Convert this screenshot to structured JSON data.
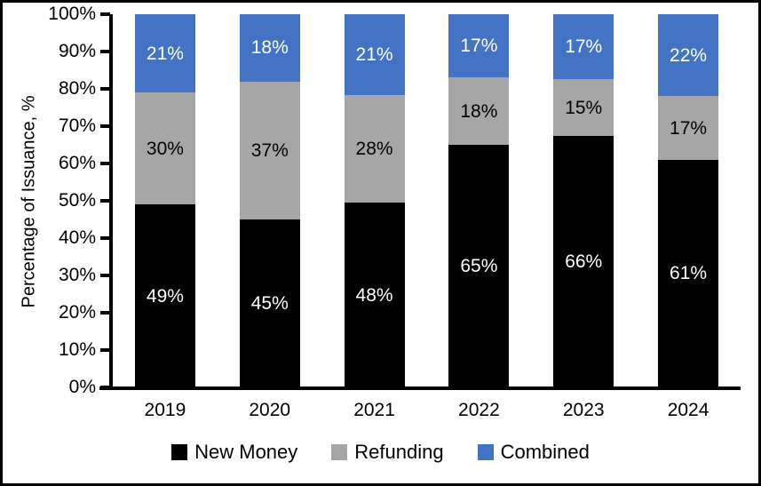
{
  "chart_data": {
    "type": "bar",
    "stacked": true,
    "title": "",
    "xlabel": "",
    "ylabel": "Percentage of Issuance, %",
    "ylim": [
      0,
      100
    ],
    "yticks": [
      "0%",
      "10%",
      "20%",
      "30%",
      "40%",
      "50%",
      "60%",
      "70%",
      "80%",
      "90%",
      "100%"
    ],
    "grid": false,
    "legend_position": "bottom",
    "categories": [
      "2019",
      "2020",
      "2021",
      "2022",
      "2023",
      "2024"
    ],
    "series": [
      {
        "name": "New Money",
        "color": "#000000",
        "label_color": "#ffffff",
        "values": [
          49,
          45,
          48,
          65,
          66,
          61
        ],
        "labels": [
          "49%",
          "45%",
          "48%",
          "65%",
          "66%",
          "61%"
        ]
      },
      {
        "name": "Refunding",
        "color": "#A6A6A6",
        "label_color": "#000000",
        "values": [
          30,
          37,
          28,
          18,
          15,
          17
        ],
        "labels": [
          "30%",
          "37%",
          "28%",
          "18%",
          "15%",
          "17%"
        ]
      },
      {
        "name": "Combined",
        "color": "#4472C4",
        "label_color": "#ffffff",
        "values": [
          21,
          18,
          21,
          17,
          17,
          22
        ],
        "labels": [
          "21%",
          "18%",
          "21%",
          "17%",
          "17%",
          "22%"
        ]
      }
    ]
  }
}
